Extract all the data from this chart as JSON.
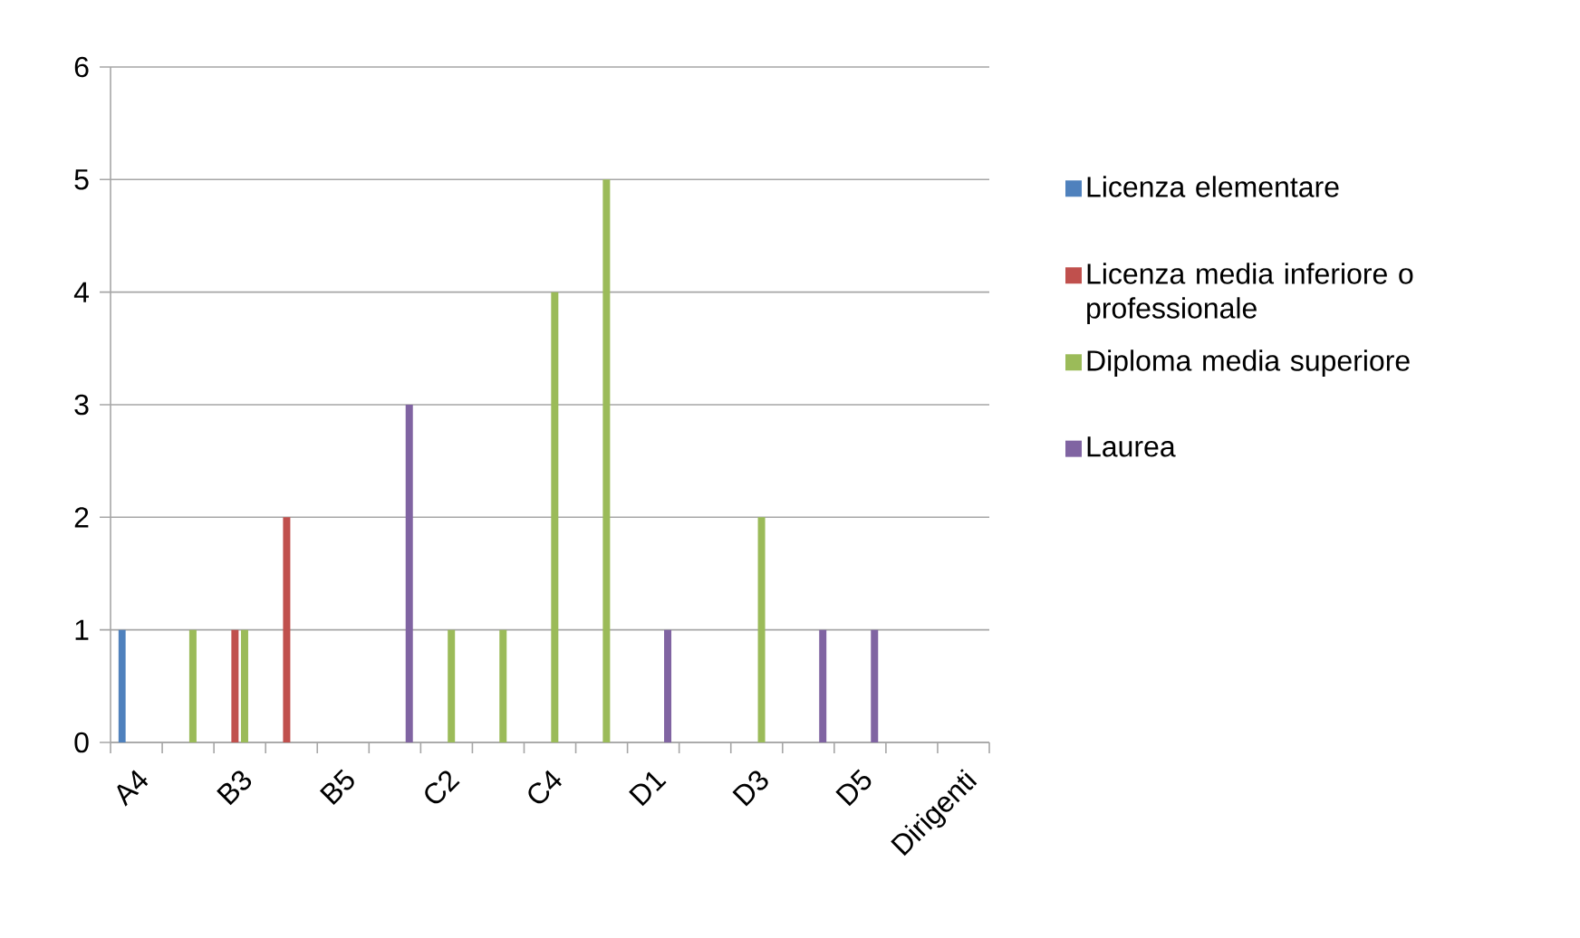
{
  "chart_data": {
    "type": "bar",
    "categories": [
      "A4",
      null,
      "B3",
      null,
      "B5",
      null,
      "C2",
      null,
      "C4",
      null,
      "D1",
      null,
      "D3",
      null,
      "D5",
      null,
      "Dirigenti"
    ],
    "series": [
      {
        "name": "Licenza elementare",
        "color": "#4f81bd",
        "values": [
          1,
          0,
          0,
          0,
          0,
          0,
          0,
          0,
          0,
          0,
          0,
          0,
          0,
          0,
          0,
          0,
          0
        ]
      },
      {
        "name": "Licenza media inferiore o professionale",
        "color": "#c0504d",
        "values": [
          0,
          0,
          1,
          2,
          0,
          0,
          0,
          0,
          0,
          0,
          0,
          0,
          0,
          0,
          0,
          0,
          0
        ]
      },
      {
        "name": "Diploma media superiore",
        "color": "#9bbb59",
        "values": [
          0,
          1,
          1,
          0,
          0,
          0,
          1,
          1,
          4,
          5,
          0,
          0,
          2,
          0,
          0,
          0,
          0
        ]
      },
      {
        "name": "Laurea",
        "color": "#8064a2",
        "values": [
          0,
          0,
          0,
          0,
          0,
          3,
          0,
          0,
          0,
          0,
          1,
          0,
          0,
          1,
          1,
          0,
          0
        ]
      }
    ],
    "ylim": [
      0,
      6
    ],
    "yticks": [
      0,
      1,
      2,
      3,
      4,
      5,
      6
    ],
    "grid": "y",
    "legend": "right"
  }
}
